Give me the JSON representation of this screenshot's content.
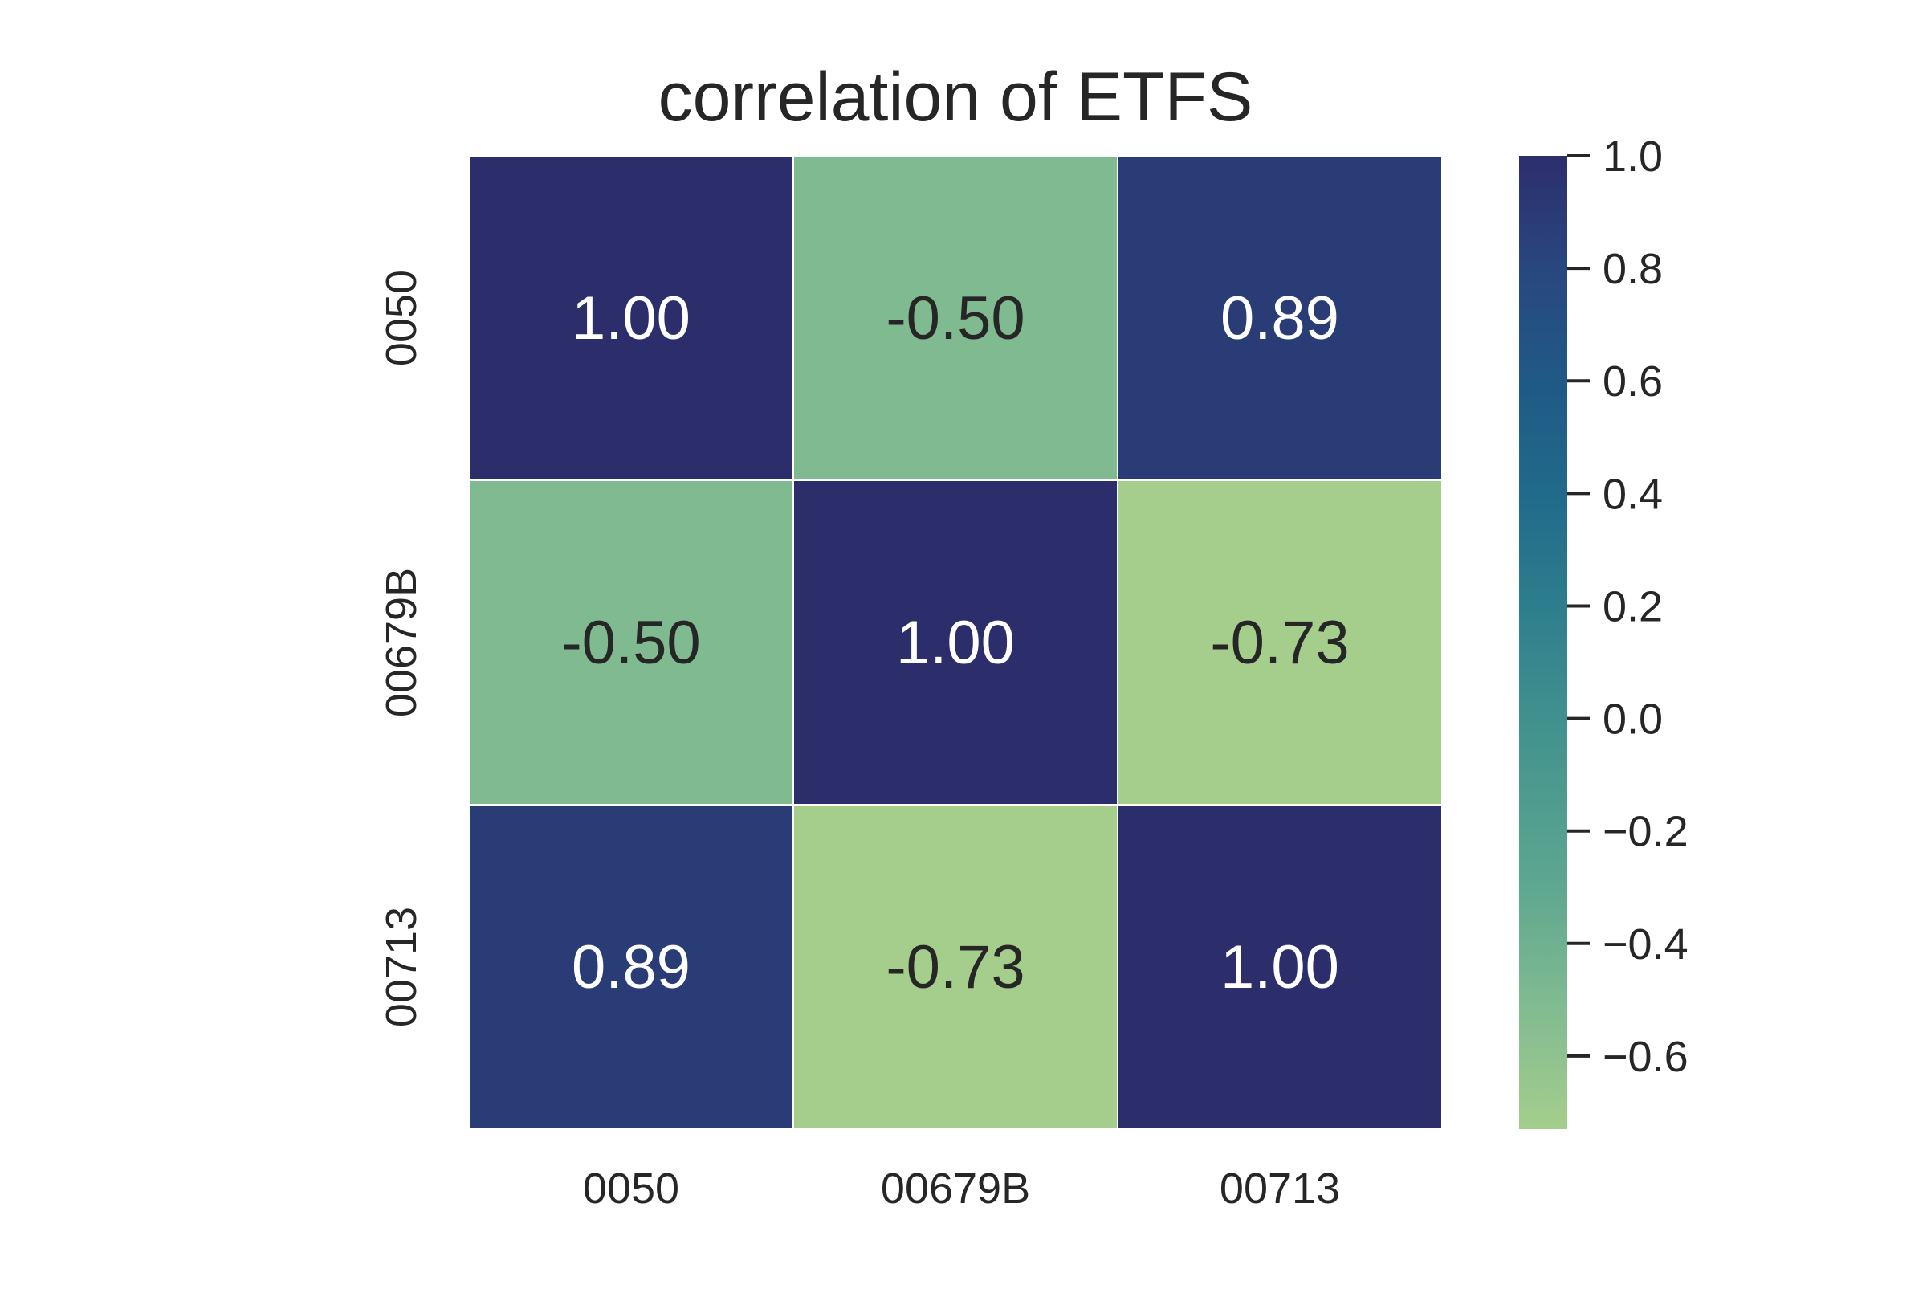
{
  "chart_data": {
    "type": "heatmap",
    "title": "correlation of ETFS",
    "xlabel": "",
    "ylabel": "",
    "x_categories": [
      "0050",
      "00679B",
      "00713"
    ],
    "y_categories": [
      "0050",
      "00679B",
      "00713"
    ],
    "values": [
      [
        1.0,
        -0.5,
        0.89
      ],
      [
        -0.5,
        1.0,
        -0.73
      ],
      [
        0.89,
        -0.73,
        1.0
      ]
    ],
    "cell_labels": [
      [
        "1.00",
        "-0.50",
        "0.89"
      ],
      [
        "-0.50",
        "1.00",
        "-0.73"
      ],
      [
        "0.89",
        "-0.73",
        "1.00"
      ]
    ],
    "colormap": "crest",
    "colorbar": {
      "range": [
        -0.73,
        1.0
      ],
      "ticks": [
        1.0,
        0.8,
        0.6,
        0.4,
        0.2,
        0.0,
        -0.2,
        -0.4,
        -0.6
      ],
      "tick_labels": [
        "1.0",
        "0.8",
        "0.6",
        "0.4",
        "0.2",
        "0.0",
        "−0.2",
        "−0.4",
        "−0.6"
      ],
      "color_stops": [
        {
          "value": -0.73,
          "color": "#a5ce8c"
        },
        {
          "value": -0.5,
          "color": "#7fba91"
        },
        {
          "value": -0.3,
          "color": "#5ea790"
        },
        {
          "value": 0.0,
          "color": "#40918e"
        },
        {
          "value": 0.2,
          "color": "#2d7e8d"
        },
        {
          "value": 0.4,
          "color": "#206a8b"
        },
        {
          "value": 0.6,
          "color": "#1f5986"
        },
        {
          "value": 0.8,
          "color": "#29477f"
        },
        {
          "value": 1.0,
          "color": "#2c2e6c"
        }
      ]
    },
    "annotation_colors": {
      "dark_cell_text": "#ffffff",
      "light_cell_text": "#262626"
    },
    "cell_border_color": "#ffffff",
    "text_color": "#262626"
  }
}
